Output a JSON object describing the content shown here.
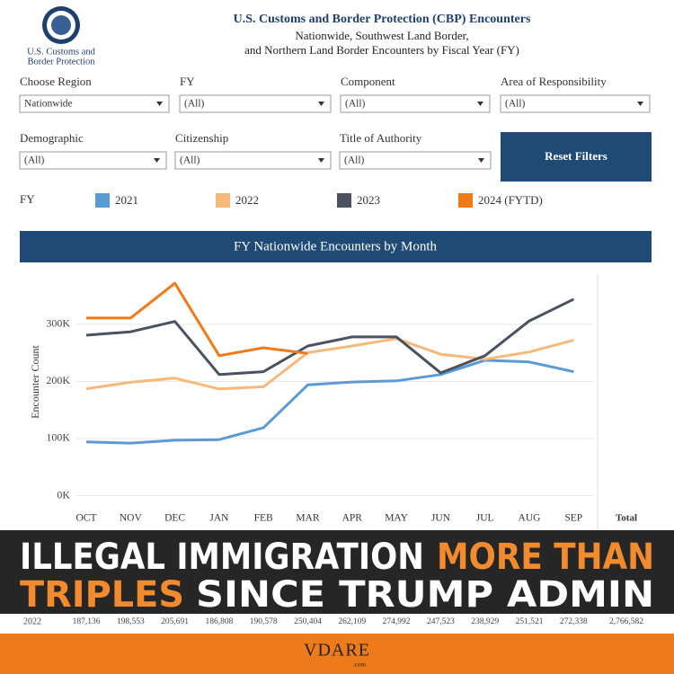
{
  "header": {
    "logo_text": [
      "U.S. Customs and",
      "Border Protection"
    ],
    "title": "U.S. Customs and Border Protection (CBP) Encounters",
    "subtitle": [
      "Nationwide, Southwest Land Border,",
      "and Northern Land Border Encounters by Fiscal Year (FY)"
    ]
  },
  "filters": [
    {
      "label": "Choose Region",
      "value": "Nationwide"
    },
    {
      "label": "FY",
      "value": "(All)"
    },
    {
      "label": "Component",
      "value": "(All)"
    },
    {
      "label": "Area of Responsibility",
      "value": "(All)"
    },
    {
      "label": "Demographic",
      "value": "(All)"
    },
    {
      "label": "Citizenship",
      "value": "(All)"
    },
    {
      "label": "Title of Authority",
      "value": "(All)"
    }
  ],
  "reset_button": "Reset Filters",
  "chart_data": {
    "type": "line",
    "legend_title": "FY",
    "title": "FY Nationwide Encounters by Month",
    "y_label": "Encounter Count",
    "categories": [
      "OCT",
      "NOV",
      "DEC",
      "JAN",
      "FEB",
      "MAR",
      "APR",
      "MAY",
      "JUN",
      "JUL",
      "AUG",
      "SEP"
    ],
    "series": [
      {
        "name": "2021",
        "color": "#5b9bd5",
        "values": [
          94000,
          92000,
          97000,
          98000,
          119000,
          194000,
          199000,
          201000,
          212000,
          237000,
          234000,
          217000
        ]
      },
      {
        "name": "2022",
        "color": "#f6b97a",
        "values": [
          187136,
          198553,
          205691,
          186808,
          190578,
          250404,
          262109,
          274992,
          247523,
          238929,
          251521,
          272338
        ]
      },
      {
        "name": "2023",
        "color": "#4a5260",
        "values": [
          281000,
          287000,
          305000,
          212000,
          217000,
          262000,
          278000,
          278000,
          215000,
          245000,
          306000,
          344000
        ]
      },
      {
        "name": "2024 (FYTD)",
        "color": "#ef7a1a",
        "values": [
          311000,
          311000,
          372000,
          245000,
          259000,
          249000,
          null,
          null,
          null,
          null,
          null,
          null
        ]
      }
    ],
    "ylim": [
      0,
      388000
    ],
    "yticks": [
      {
        "value": 0,
        "label": "0K"
      },
      {
        "value": 100000,
        "label": "100K"
      },
      {
        "value": 200000,
        "label": "200K"
      },
      {
        "value": 300000,
        "label": "300K"
      }
    ],
    "grid": true
  },
  "table": {
    "total_header": "Total",
    "rows": [
      {
        "year": "2022",
        "values": [
          "187,136",
          "198,553",
          "205,691",
          "186,808",
          "190,578",
          "250,404",
          "262,109",
          "274,992",
          "247,523",
          "238,929",
          "251,521",
          "272,338"
        ],
        "total": "2,766,582"
      }
    ]
  },
  "banner": {
    "line1": [
      "ILLEGAL IMMIGRATION",
      "MORE THAN"
    ],
    "line2": [
      "TRIPLES",
      "SINCE TRUMP ADMIN"
    ]
  },
  "watermark": {
    "name": "VDARE",
    "domain": ".com"
  }
}
